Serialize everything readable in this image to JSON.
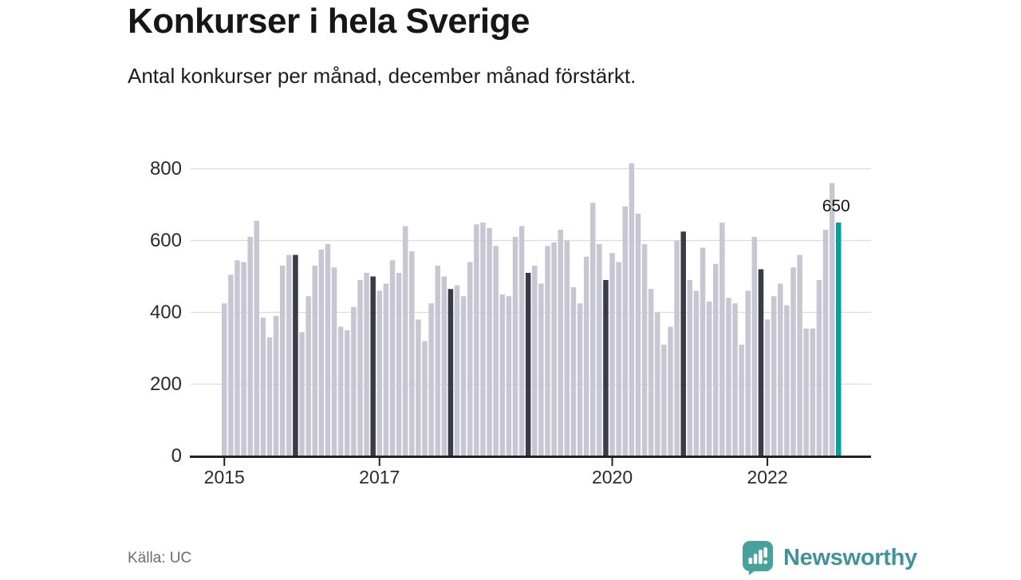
{
  "header": {
    "title": "Konkurser i hela Sverige",
    "subtitle": "Antal konkurser per månad, december månad förstärkt."
  },
  "chart_data": {
    "type": "bar",
    "title": "Konkurser i hela Sverige",
    "subtitle": "Antal konkurser per månad, december månad förstärkt.",
    "unit": "antal konkurser per månad",
    "start_month": "2015-01",
    "end_month": "2022-12",
    "series": [
      {
        "name": "Antal konkurser",
        "values": [
          425,
          505,
          545,
          540,
          610,
          655,
          385,
          330,
          390,
          530,
          560,
          560,
          345,
          445,
          530,
          575,
          590,
          525,
          360,
          350,
          415,
          490,
          510,
          500,
          460,
          480,
          545,
          510,
          640,
          570,
          380,
          320,
          425,
          530,
          500,
          465,
          475,
          445,
          540,
          645,
          650,
          635,
          585,
          450,
          445,
          610,
          640,
          510,
          530,
          480,
          585,
          595,
          630,
          600,
          470,
          425,
          555,
          705,
          590,
          490,
          565,
          540,
          695,
          815,
          675,
          590,
          465,
          400,
          310,
          360,
          600,
          625,
          490,
          460,
          580,
          430,
          535,
          650,
          440,
          425,
          310,
          460,
          610,
          520,
          380,
          445,
          480,
          420,
          525,
          560,
          355,
          355,
          490,
          630,
          760,
          650
        ]
      }
    ],
    "emphasis": {
      "rule": "every December bar is dark, latest December (2022-12) is teal",
      "december_month_indices": [
        11,
        23,
        35,
        47,
        59,
        71,
        83
      ],
      "latest_index": 95,
      "latest_month": "2022-12",
      "latest_value": 650
    },
    "annotation": {
      "text": "650"
    },
    "y_ticks": [
      0,
      200,
      400,
      600,
      800
    ],
    "ylim": [
      0,
      850
    ],
    "x_tick_labels": [
      "2015",
      "2017",
      "2020",
      "2022"
    ],
    "x_tick_month_indices": [
      0,
      24,
      60,
      84
    ],
    "grid": true,
    "legend": "none"
  },
  "footer": {
    "source": "Källa: UC",
    "brand": "Newsworthy"
  },
  "colors": {
    "bar_default": "#c9c6d3",
    "bar_december": "#3b3a48",
    "bar_latest": "#00a29b",
    "grid": "#dbdbe0",
    "axis": "#222222",
    "tick_text": "#2b2b2b",
    "annotation_text": "#141414",
    "muted_text": "#6d6c76",
    "brand_text": "#3f939b",
    "brand_icon": "#46a39b"
  }
}
